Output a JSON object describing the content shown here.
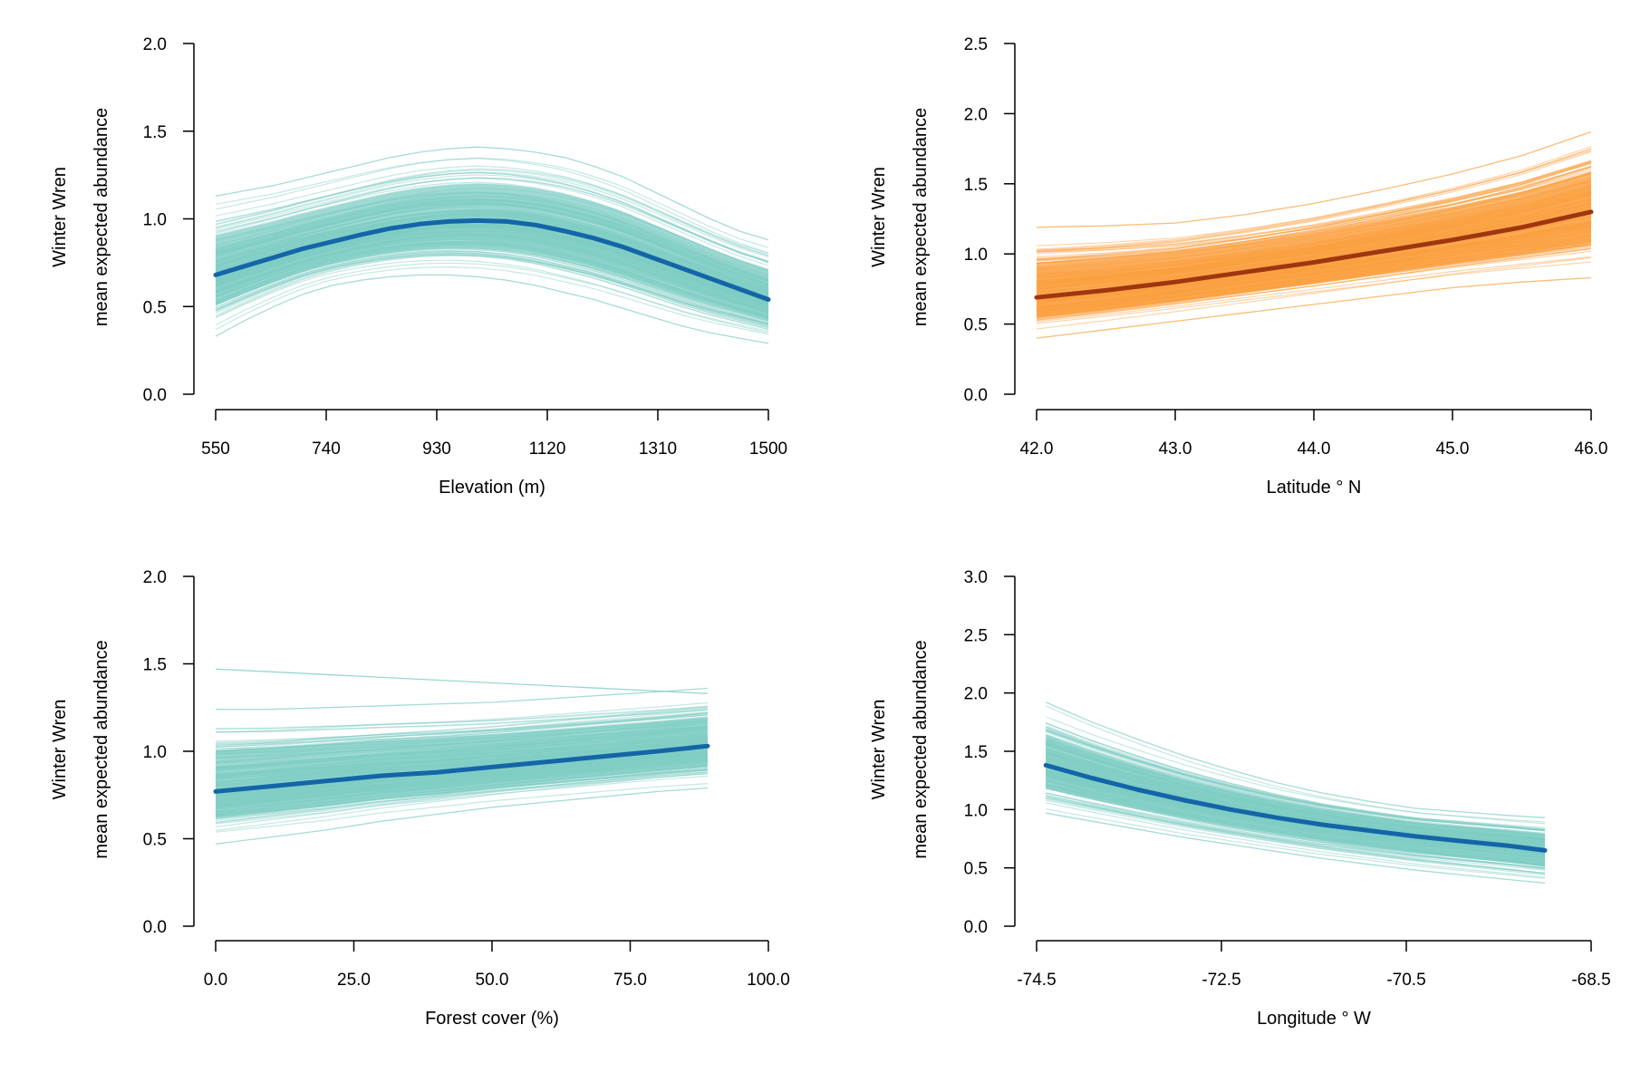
{
  "chart_data": [
    {
      "type": "line",
      "ylabel_line1": "Winter Wren",
      "ylabel_line2": "mean expected abundance",
      "xlabel": "Elevation (m)",
      "xlim": [
        550,
        1500
      ],
      "ylim": [
        0.0,
        2.0
      ],
      "x_ticks": [
        "550",
        "740",
        "930",
        "1120",
        "1310",
        "1500"
      ],
      "y_ticks": [
        "0.0",
        "0.5",
        "1.0",
        "1.5",
        "2.0"
      ],
      "x_tick_values": [
        550,
        740,
        930,
        1120,
        1310,
        1500
      ],
      "y_tick_values": [
        0.0,
        0.5,
        1.0,
        1.5,
        2.0
      ],
      "posterior_color": "#7fcdc4",
      "mean_color": "#1465a8",
      "series": [
        {
          "role": "posterior-mean",
          "x": [
            550,
            600,
            650,
            700,
            750,
            800,
            850,
            900,
            950,
            1000,
            1050,
            1100,
            1150,
            1200,
            1250,
            1300,
            1350,
            1400,
            1450,
            1500
          ],
          "y": [
            0.68,
            0.73,
            0.78,
            0.83,
            0.87,
            0.91,
            0.945,
            0.97,
            0.985,
            0.99,
            0.985,
            0.965,
            0.93,
            0.89,
            0.84,
            0.78,
            0.72,
            0.66,
            0.6,
            0.54
          ]
        }
      ],
      "posterior_band": {
        "x": [
          550,
          600,
          650,
          700,
          750,
          800,
          850,
          900,
          950,
          1000,
          1050,
          1100,
          1150,
          1200,
          1250,
          1300,
          1350,
          1400,
          1450,
          1500
        ],
        "lower": [
          0.33,
          0.42,
          0.5,
          0.57,
          0.62,
          0.65,
          0.67,
          0.68,
          0.68,
          0.67,
          0.65,
          0.62,
          0.58,
          0.54,
          0.49,
          0.44,
          0.39,
          0.35,
          0.32,
          0.29
        ],
        "upper": [
          1.13,
          1.16,
          1.19,
          1.23,
          1.27,
          1.31,
          1.35,
          1.38,
          1.4,
          1.41,
          1.4,
          1.38,
          1.35,
          1.3,
          1.24,
          1.16,
          1.08,
          1.0,
          0.93,
          0.88
        ]
      }
    },
    {
      "type": "line",
      "ylabel_line1": "Winter Wren",
      "ylabel_line2": "mean expected abundance",
      "xlabel": "Latitude ° N",
      "xlim": [
        42.0,
        46.0
      ],
      "ylim": [
        0.0,
        2.5
      ],
      "x_ticks": [
        "42.0",
        "43.0",
        "44.0",
        "45.0",
        "46.0"
      ],
      "y_ticks": [
        "0.0",
        "0.5",
        "1.0",
        "1.5",
        "2.0",
        "2.5"
      ],
      "x_tick_values": [
        42.0,
        43.0,
        44.0,
        45.0,
        46.0
      ],
      "y_tick_values": [
        0.0,
        0.5,
        1.0,
        1.5,
        2.0,
        2.5
      ],
      "posterior_color": "#fba040",
      "mean_color": "#a0360f",
      "series": [
        {
          "role": "posterior-mean",
          "x": [
            42.0,
            42.5,
            43.0,
            43.5,
            44.0,
            44.5,
            45.0,
            45.5,
            46.0
          ],
          "y": [
            0.69,
            0.74,
            0.8,
            0.87,
            0.94,
            1.02,
            1.1,
            1.19,
            1.3
          ]
        }
      ],
      "posterior_band": {
        "x": [
          42.0,
          42.5,
          43.0,
          43.5,
          44.0,
          44.5,
          45.0,
          45.5,
          46.0
        ],
        "lower": [
          0.4,
          0.46,
          0.52,
          0.58,
          0.64,
          0.7,
          0.76,
          0.8,
          0.83
        ],
        "upper": [
          1.19,
          1.2,
          1.22,
          1.28,
          1.36,
          1.46,
          1.57,
          1.7,
          1.87
        ]
      }
    },
    {
      "type": "line",
      "ylabel_line1": "Winter Wren",
      "ylabel_line2": "mean expected abundance",
      "xlabel": "Forest cover (%)",
      "xlim": [
        0.0,
        100.0
      ],
      "ylim": [
        0.0,
        2.0
      ],
      "x_ticks": [
        "0.0",
        "25.0",
        "50.0",
        "75.0",
        "100.0"
      ],
      "y_ticks": [
        "0.0",
        "0.5",
        "1.0",
        "1.5",
        "2.0"
      ],
      "x_tick_values": [
        0.0,
        25.0,
        50.0,
        75.0,
        100.0
      ],
      "y_tick_values": [
        0.0,
        0.5,
        1.0,
        1.5,
        2.0
      ],
      "posterior_color": "#7fcdc4",
      "mean_color": "#1465a8",
      "series": [
        {
          "role": "posterior-mean",
          "x": [
            0,
            10,
            20,
            30,
            40,
            50,
            60,
            70,
            80,
            89
          ],
          "y": [
            0.77,
            0.8,
            0.83,
            0.86,
            0.88,
            0.91,
            0.94,
            0.97,
            1.0,
            1.03
          ]
        }
      ],
      "posterior_band": {
        "x": [
          0,
          10,
          20,
          30,
          40,
          50,
          60,
          70,
          80,
          89
        ],
        "lower": [
          0.47,
          0.51,
          0.55,
          0.6,
          0.64,
          0.68,
          0.71,
          0.74,
          0.77,
          0.79
        ],
        "upper": [
          1.24,
          1.24,
          1.25,
          1.26,
          1.27,
          1.28,
          1.3,
          1.32,
          1.34,
          1.36
        ]
      },
      "outlier_line": {
        "x": [
          0,
          89
        ],
        "y": [
          1.47,
          1.33
        ]
      }
    },
    {
      "type": "line",
      "ylabel_line1": "Winter Wren",
      "ylabel_line2": "mean expected abundance",
      "xlabel": "Longitude ° W",
      "xlim": [
        -74.5,
        -68.5
      ],
      "ylim": [
        0.0,
        3.0
      ],
      "x_ticks": [
        "-74.5",
        "-72.5",
        "-70.5",
        "-68.5"
      ],
      "y_ticks": [
        "0.0",
        "0.5",
        "1.0",
        "1.5",
        "2.0",
        "2.5",
        "3.0"
      ],
      "x_tick_values": [
        -74.5,
        -72.5,
        -70.5,
        -68.5
      ],
      "y_tick_values": [
        0.0,
        0.5,
        1.0,
        1.5,
        2.0,
        2.5,
        3.0
      ],
      "posterior_color": "#7fcdc4",
      "mean_color": "#1465a8",
      "series": [
        {
          "role": "posterior-mean",
          "x": [
            -74.4,
            -73.9,
            -73.4,
            -72.9,
            -72.4,
            -71.9,
            -71.4,
            -70.9,
            -70.4,
            -69.9,
            -69.4,
            -69.0
          ],
          "y": [
            1.38,
            1.27,
            1.17,
            1.08,
            1.0,
            0.93,
            0.87,
            0.82,
            0.77,
            0.73,
            0.69,
            0.65
          ]
        }
      ],
      "posterior_band": {
        "x": [
          -74.4,
          -73.9,
          -73.4,
          -72.9,
          -72.4,
          -71.9,
          -71.4,
          -70.9,
          -70.4,
          -69.9,
          -69.4,
          -69.0
        ],
        "lower": [
          0.97,
          0.9,
          0.83,
          0.76,
          0.7,
          0.64,
          0.58,
          0.53,
          0.48,
          0.44,
          0.4,
          0.37
        ],
        "upper": [
          1.92,
          1.75,
          1.6,
          1.46,
          1.34,
          1.23,
          1.14,
          1.07,
          1.01,
          0.98,
          0.95,
          0.93
        ]
      }
    }
  ]
}
